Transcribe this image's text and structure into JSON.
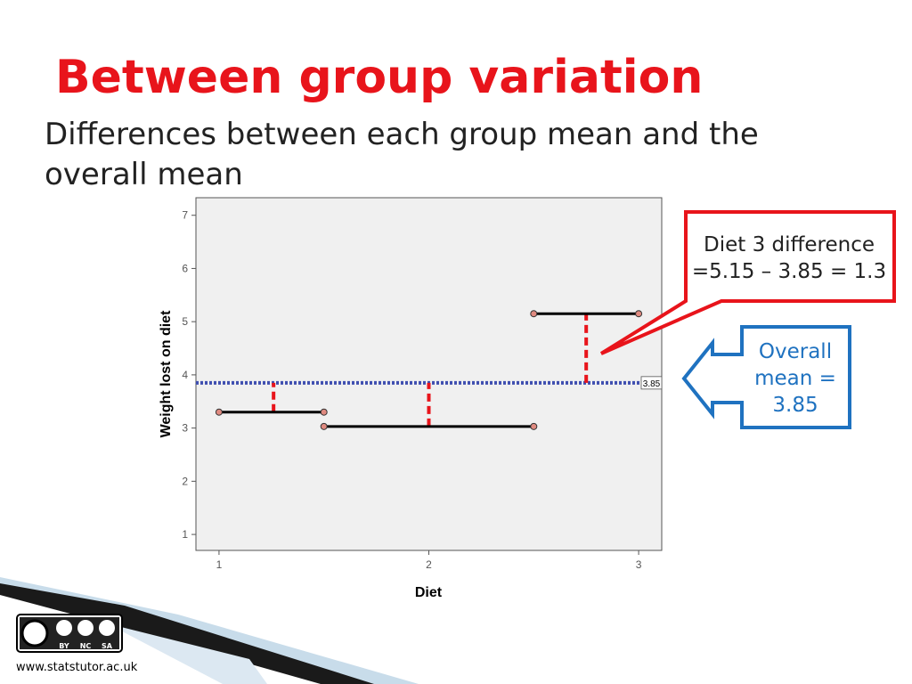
{
  "chart_data": {
    "type": "line",
    "title": "Between group variation",
    "subtitle": [
      "Differences between each group mean and the",
      "overall mean"
    ],
    "x_label": "Diet",
    "y_label": "Weight lost on diet",
    "xlim": [
      0.89,
      3.11
    ],
    "ylim": [
      0.7,
      7.33
    ],
    "xticks": [
      1,
      2,
      3
    ],
    "yticks": [
      1,
      2,
      3,
      4,
      5,
      6,
      7
    ],
    "series": [
      {
        "color": "#000000",
        "x": [
          1,
          1.5
        ],
        "values": [
          3.3,
          3.3
        ]
      },
      {
        "color": "#000000",
        "x": [
          1.5,
          2.5
        ],
        "values": [
          3.03,
          3.03
        ]
      },
      {
        "color": "#000000",
        "x": [
          2.5,
          3
        ],
        "values": [
          5.15,
          5.15
        ]
      }
    ],
    "reference_line": {
      "value": 3.85,
      "label": "3.85",
      "color": "#3f4fb0"
    },
    "differences": [
      {
        "x": 1.26,
        "from": 3.3,
        "to": 3.85
      },
      {
        "x": 2,
        "from": 3.03,
        "to": 3.85
      },
      {
        "x": 2.75,
        "from": 3.85,
        "to": 5.15
      }
    ],
    "difference_color": "#e8141b",
    "annotations": [
      {
        "lines": [
          "Diet 3 difference",
          "=5.15 – 3.85 = 1.3"
        ],
        "color": "#e8141b"
      },
      {
        "lines": [
          "Overall",
          "mean =",
          "3.85"
        ],
        "color": "#1f72c0"
      }
    ]
  },
  "footer": {
    "website": "www.statstutor.ac.uk",
    "license": [
      "BY",
      "NC",
      "SA"
    ]
  }
}
